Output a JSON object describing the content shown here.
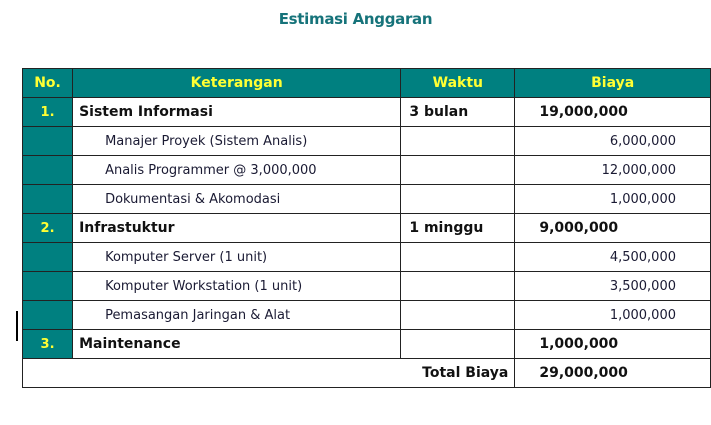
{
  "title": "Estimasi Anggaran",
  "colors": {
    "header_bg": "#008080",
    "header_text": "#ffff33",
    "title": "#16737a"
  },
  "table": {
    "headers": {
      "no": "No.",
      "keterangan": "Keterangan",
      "waktu": "Waktu",
      "biaya": "Biaya"
    },
    "rows": [
      {
        "no": "1.",
        "keterangan": "Sistem Informasi",
        "waktu": "3 bulan",
        "biaya": "19,000,000"
      },
      {
        "no": "",
        "keterangan": "Manajer Proyek (Sistem Analis)",
        "waktu": "",
        "biaya": "6,000,000"
      },
      {
        "no": "",
        "keterangan": "Analis Programmer @ 3,000,000",
        "waktu": "",
        "biaya": "12,000,000"
      },
      {
        "no": "",
        "keterangan": "Dokumentasi & Akomodasi",
        "waktu": "",
        "biaya": "1,000,000"
      },
      {
        "no": "2.",
        "keterangan": "Infrastuktur",
        "waktu": "1 minggu",
        "biaya": "9,000,000"
      },
      {
        "no": "",
        "keterangan": "Komputer Server (1 unit)",
        "waktu": "",
        "biaya": "4,500,000"
      },
      {
        "no": "",
        "keterangan": "Komputer Workstation (1 unit)",
        "waktu": "",
        "biaya": "3,500,000"
      },
      {
        "no": "",
        "keterangan": "Pemasangan Jaringan & Alat",
        "waktu": "",
        "biaya": "1,000,000"
      },
      {
        "no": "3.",
        "keterangan": "Maintenance",
        "waktu": "",
        "biaya": "1,000,000"
      }
    ],
    "total": {
      "label": "Total Biaya",
      "value": "29,000,000"
    }
  }
}
